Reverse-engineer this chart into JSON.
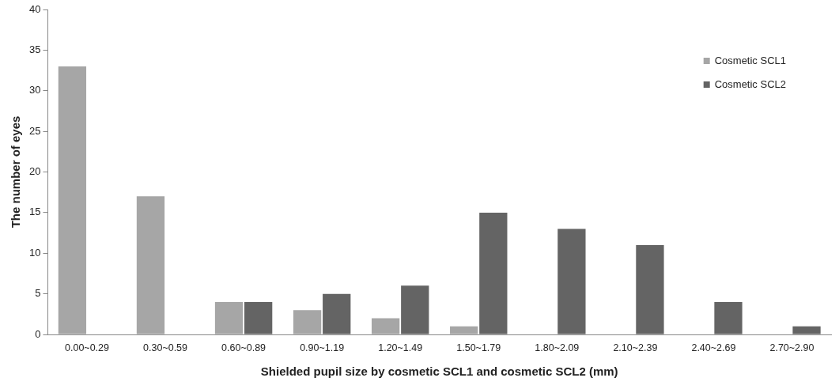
{
  "chart_data": {
    "type": "bar",
    "xlabel": "Shielded pupil size by cosmetic SCL1 and cosmetic SCL2 (mm)",
    "ylabel": "The number of eyes",
    "categories": [
      "0.00~0.29",
      "0.30~0.59",
      "0.60~0.89",
      "0.90~1.19",
      "1.20~1.49",
      "1.50~1.79",
      "1.80~2.09",
      "2.10~2.39",
      "2.40~2.69",
      "2.70~2.90"
    ],
    "series": [
      {
        "name": "Cosmetic SCL1",
        "color": "#a6a6a6",
        "values": [
          33,
          17,
          4,
          3,
          2,
          1,
          0,
          0,
          0,
          0
        ]
      },
      {
        "name": "Cosmetic SCL2",
        "color": "#646464",
        "values": [
          0,
          0,
          4,
          5,
          6,
          15,
          13,
          11,
          4,
          1
        ]
      }
    ],
    "ylim": [
      0,
      40
    ],
    "yticks": [
      0,
      5,
      10,
      15,
      20,
      25,
      30,
      35,
      40
    ],
    "grid": false,
    "legend": "top right"
  }
}
